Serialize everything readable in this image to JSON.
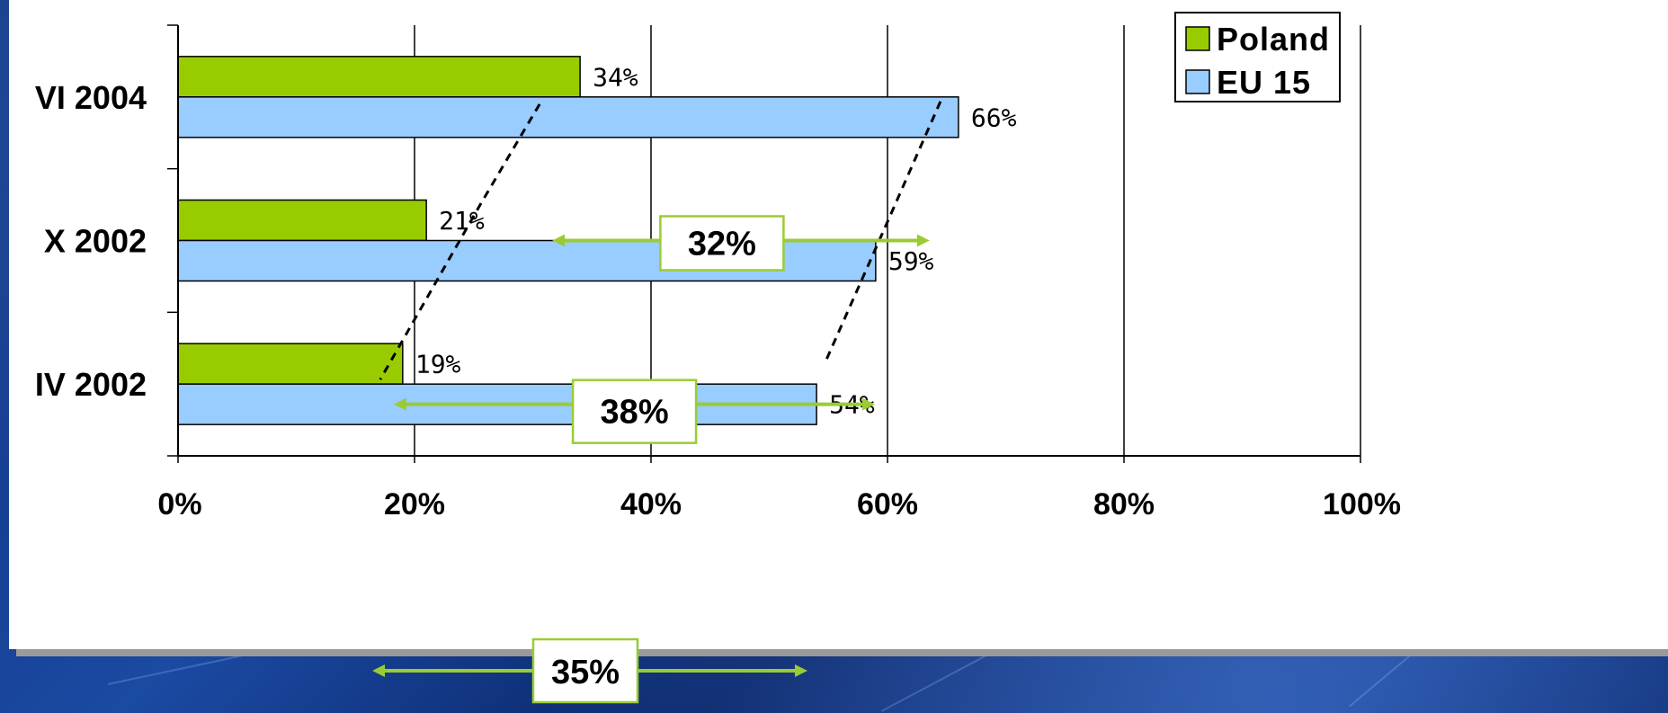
{
  "colors": {
    "poland": "#99cc00",
    "eu15": "#99ccff",
    "annotation": "#99cc33"
  },
  "legend": {
    "items": [
      {
        "label": "Poland",
        "color": "#99cc00"
      },
      {
        "label": "EU 15",
        "color": "#99ccff"
      }
    ]
  },
  "annotations": {
    "gap_x2002": "32%",
    "gap_iv2002": "38%",
    "shift": "35%"
  },
  "chart_data": {
    "type": "bar",
    "orientation": "horizontal",
    "categories": [
      "VI 2004",
      "X 2002",
      "IV 2002"
    ],
    "series": [
      {
        "name": "Poland",
        "values": [
          34,
          21,
          19
        ],
        "labels": [
          "34%",
          "21%",
          "19%"
        ]
      },
      {
        "name": "EU 15",
        "values": [
          66,
          59,
          54
        ],
        "labels": [
          "66%",
          "59%",
          "54%"
        ]
      }
    ],
    "xlim": [
      0,
      100
    ],
    "xticks": [
      "0%",
      "20%",
      "40%",
      "60%",
      "80%",
      "100%"
    ],
    "grid": true,
    "legend_position": "top-right",
    "title": "",
    "xlabel": "",
    "ylabel": ""
  }
}
